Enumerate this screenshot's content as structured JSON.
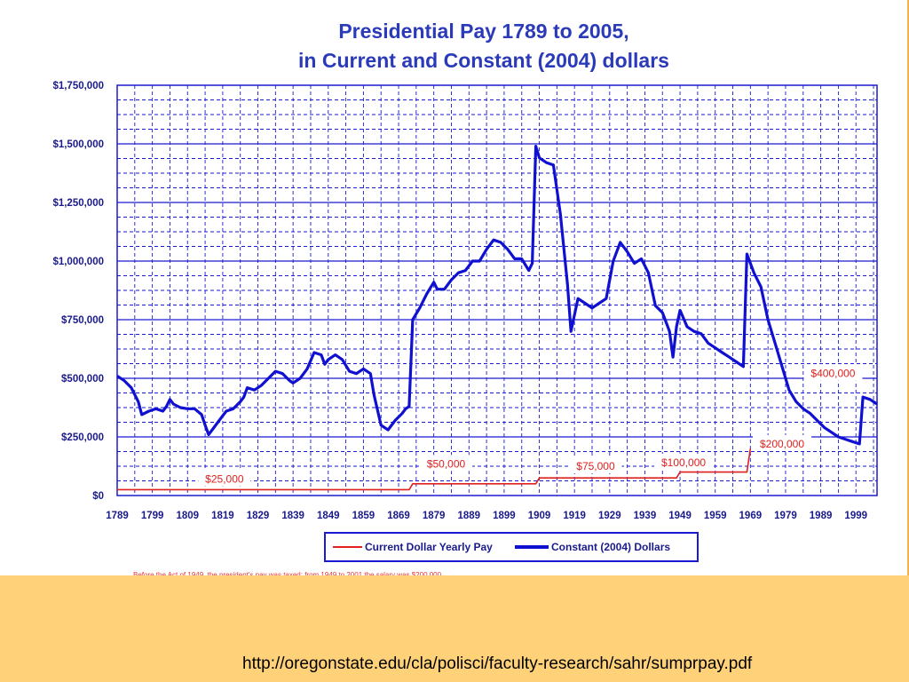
{
  "slide": {
    "source_url": "http://oregonstate.edu/cla/polisci/faculty-research/sahr/sumprpay.pdf",
    "footnote": "Before the Act of 1949, the president's pay was taxed; from 1949 to 2001 the salary was $200,000 ..."
  },
  "colors": {
    "current_series": "#e0201e",
    "constant_series": "#1010d0",
    "grid": "#1a1ad0",
    "text": "#1a1a8a",
    "title": "#2a3ab8",
    "background": "#FFD27A"
  },
  "chart_data": {
    "type": "line",
    "title": [
      "Presidential Pay 1789 to 2005,",
      "in Current and Constant (2004) dollars"
    ],
    "xlim": [
      1789,
      2005
    ],
    "ylim": [
      0,
      1750000
    ],
    "x_ticks": [
      1789,
      1799,
      1809,
      1819,
      1829,
      1839,
      1849,
      1859,
      1869,
      1879,
      1889,
      1899,
      1909,
      1919,
      1929,
      1939,
      1949,
      1959,
      1969,
      1979,
      1989,
      1999
    ],
    "y_ticks": [
      {
        "value": 0,
        "label": "$0"
      },
      {
        "value": 250000,
        "label": "$250,000"
      },
      {
        "value": 500000,
        "label": "$500,000"
      },
      {
        "value": 750000,
        "label": "$750,000"
      },
      {
        "value": 1000000,
        "label": "$1,000,000"
      },
      {
        "value": 1250000,
        "label": "$1,250,000"
      },
      {
        "value": 1500000,
        "label": "$1,500,000"
      },
      {
        "value": 1750000,
        "label": "$1,750,000"
      }
    ],
    "grid": true,
    "legend": {
      "position": "bottom"
    },
    "series": [
      {
        "name": "Current Dollar Yearly Pay",
        "color": "#e0201e",
        "points": [
          [
            1789,
            25000
          ],
          [
            1872,
            25000
          ],
          [
            1873,
            50000
          ],
          [
            1908,
            50000
          ],
          [
            1909,
            75000
          ],
          [
            1948,
            75000
          ],
          [
            1949,
            100000
          ],
          [
            1968,
            100000
          ],
          [
            1969,
            200000
          ]
        ]
      },
      {
        "name": "Constant (2004) Dollars",
        "color": "#1010d0",
        "points": [
          [
            1789,
            510000
          ],
          [
            1791,
            490000
          ],
          [
            1793,
            460000
          ],
          [
            1795,
            400000
          ],
          [
            1796,
            345000
          ],
          [
            1798,
            360000
          ],
          [
            1800,
            370000
          ],
          [
            1802,
            360000
          ],
          [
            1803,
            380000
          ],
          [
            1804,
            410000
          ],
          [
            1805,
            390000
          ],
          [
            1807,
            375000
          ],
          [
            1809,
            370000
          ],
          [
            1811,
            370000
          ],
          [
            1813,
            345000
          ],
          [
            1814,
            300000
          ],
          [
            1815,
            260000
          ],
          [
            1816,
            280000
          ],
          [
            1818,
            320000
          ],
          [
            1820,
            360000
          ],
          [
            1822,
            370000
          ],
          [
            1824,
            400000
          ],
          [
            1825,
            420000
          ],
          [
            1826,
            460000
          ],
          [
            1828,
            450000
          ],
          [
            1830,
            470000
          ],
          [
            1832,
            500000
          ],
          [
            1834,
            530000
          ],
          [
            1836,
            520000
          ],
          [
            1838,
            490000
          ],
          [
            1839,
            480000
          ],
          [
            1841,
            500000
          ],
          [
            1843,
            540000
          ],
          [
            1845,
            610000
          ],
          [
            1847,
            600000
          ],
          [
            1848,
            560000
          ],
          [
            1849,
            580000
          ],
          [
            1851,
            600000
          ],
          [
            1853,
            580000
          ],
          [
            1855,
            530000
          ],
          [
            1857,
            520000
          ],
          [
            1859,
            540000
          ],
          [
            1861,
            520000
          ],
          [
            1862,
            430000
          ],
          [
            1864,
            300000
          ],
          [
            1866,
            280000
          ],
          [
            1868,
            320000
          ],
          [
            1870,
            350000
          ],
          [
            1871,
            370000
          ],
          [
            1872,
            380000
          ],
          [
            1873,
            750000
          ],
          [
            1875,
            800000
          ],
          [
            1877,
            860000
          ],
          [
            1879,
            910000
          ],
          [
            1880,
            880000
          ],
          [
            1882,
            880000
          ],
          [
            1884,
            920000
          ],
          [
            1886,
            950000
          ],
          [
            1888,
            960000
          ],
          [
            1890,
            1000000
          ],
          [
            1892,
            1000000
          ],
          [
            1894,
            1050000
          ],
          [
            1896,
            1090000
          ],
          [
            1898,
            1080000
          ],
          [
            1900,
            1050000
          ],
          [
            1902,
            1010000
          ],
          [
            1904,
            1010000
          ],
          [
            1906,
            960000
          ],
          [
            1907,
            990000
          ],
          [
            1908,
            1490000
          ],
          [
            1909,
            1440000
          ],
          [
            1911,
            1420000
          ],
          [
            1913,
            1410000
          ],
          [
            1915,
            1200000
          ],
          [
            1917,
            900000
          ],
          [
            1918,
            700000
          ],
          [
            1920,
            840000
          ],
          [
            1922,
            820000
          ],
          [
            1924,
            800000
          ],
          [
            1926,
            820000
          ],
          [
            1928,
            840000
          ],
          [
            1930,
            1000000
          ],
          [
            1932,
            1080000
          ],
          [
            1934,
            1040000
          ],
          [
            1936,
            990000
          ],
          [
            1938,
            1010000
          ],
          [
            1940,
            950000
          ],
          [
            1942,
            810000
          ],
          [
            1944,
            780000
          ],
          [
            1946,
            700000
          ],
          [
            1947,
            590000
          ],
          [
            1948,
            720000
          ],
          [
            1949,
            790000
          ],
          [
            1951,
            720000
          ],
          [
            1953,
            700000
          ],
          [
            1955,
            690000
          ],
          [
            1957,
            650000
          ],
          [
            1959,
            630000
          ],
          [
            1961,
            610000
          ],
          [
            1963,
            590000
          ],
          [
            1965,
            570000
          ],
          [
            1967,
            550000
          ],
          [
            1968,
            1030000
          ],
          [
            1970,
            950000
          ],
          [
            1972,
            890000
          ],
          [
            1974,
            750000
          ],
          [
            1976,
            650000
          ],
          [
            1978,
            550000
          ],
          [
            1980,
            450000
          ],
          [
            1982,
            400000
          ],
          [
            1984,
            370000
          ],
          [
            1986,
            350000
          ],
          [
            1988,
            320000
          ],
          [
            1990,
            290000
          ],
          [
            1992,
            270000
          ],
          [
            1994,
            250000
          ],
          [
            1996,
            240000
          ],
          [
            1998,
            230000
          ],
          [
            2000,
            220000
          ],
          [
            2001,
            420000
          ],
          [
            2003,
            410000
          ],
          [
            2005,
            390000
          ]
        ]
      }
    ],
    "annotations": [
      {
        "text": "$25,000",
        "x": 1819.5,
        "y": 70000
      },
      {
        "text": "$50,000",
        "x": 1882.5,
        "y": 135000
      },
      {
        "text": "$75,000",
        "x": 1925,
        "y": 125000
      },
      {
        "text": "$100,000",
        "x": 1950,
        "y": 140000
      },
      {
        "text": "$200,000",
        "x": 1978,
        "y": 220000
      },
      {
        "text": "$400,000",
        "x": 1992.5,
        "y": 520000
      }
    ]
  }
}
